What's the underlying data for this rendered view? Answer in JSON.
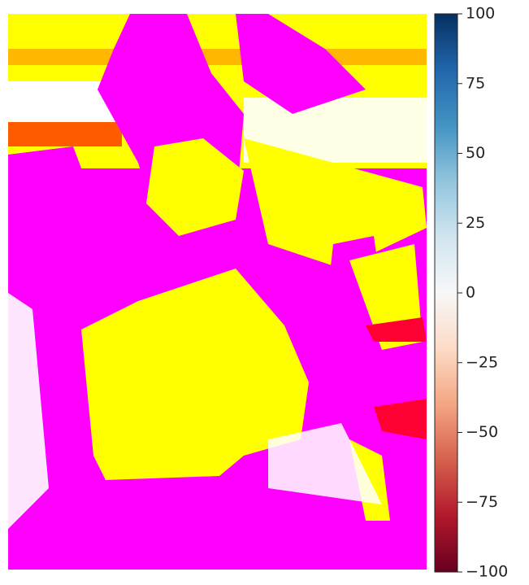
{
  "chart_data": {
    "type": "heatmap",
    "colorbar": {
      "lim": [
        -100,
        100
      ],
      "ticks": [
        {
          "value": -100,
          "label": "−100"
        },
        {
          "value": -75,
          "label": "−75"
        },
        {
          "value": -50,
          "label": "−50"
        },
        {
          "value": -25,
          "label": "−25"
        },
        0,
        25,
        50,
        75,
        100
      ],
      "colors": [
        "#67001f",
        "#b2182b",
        "#d6604d",
        "#f4a582",
        "#fddbc7",
        "#f7f7f7",
        "#d1e5f0",
        "#92c5de",
        "#4393c3",
        "#2166ac",
        "#053061"
      ]
    }
  }
}
